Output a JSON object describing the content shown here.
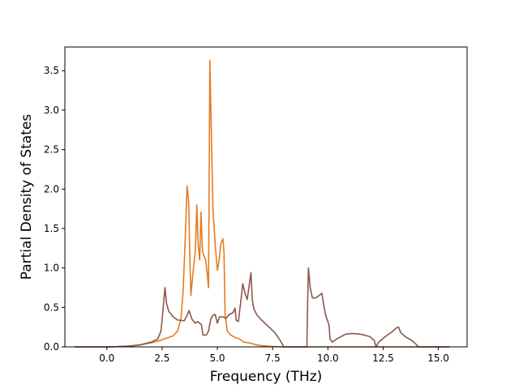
{
  "chart_data": {
    "type": "line",
    "title": "",
    "xlabel": "Frequency (THz)",
    "ylabel": "Partial Density of States",
    "xlim": [
      -1.9,
      16.3
    ],
    "ylim": [
      0.0,
      3.8
    ],
    "xticks": [
      0.0,
      2.5,
      5.0,
      7.5,
      10.0,
      12.5,
      15.0
    ],
    "xtick_labels": [
      "0.0",
      "2.5",
      "5.0",
      "7.5",
      "10.0",
      "12.5",
      "15.0"
    ],
    "yticks": [
      0.0,
      0.5,
      1.0,
      1.5,
      2.0,
      2.5,
      3.0,
      3.5
    ],
    "ytick_labels": [
      "0.0",
      "0.5",
      "1.0",
      "1.5",
      "2.0",
      "2.5",
      "3.0",
      "3.5"
    ],
    "grid": false,
    "legend": "none",
    "series": [
      {
        "color": "#e57b22",
        "points": [
          [
            -1.45,
            0.0
          ],
          [
            0.0,
            0.0
          ],
          [
            0.5,
            0.003
          ],
          [
            1.0,
            0.01
          ],
          [
            1.5,
            0.025
          ],
          [
            2.0,
            0.05
          ],
          [
            2.4,
            0.08
          ],
          [
            2.6,
            0.1
          ],
          [
            2.8,
            0.12
          ],
          [
            3.0,
            0.14
          ],
          [
            3.2,
            0.2
          ],
          [
            3.35,
            0.35
          ],
          [
            3.45,
            0.7
          ],
          [
            3.55,
            1.4
          ],
          [
            3.63,
            2.04
          ],
          [
            3.7,
            1.85
          ],
          [
            3.75,
            1.2
          ],
          [
            3.8,
            0.65
          ],
          [
            3.9,
            0.95
          ],
          [
            4.0,
            1.2
          ],
          [
            4.07,
            1.8
          ],
          [
            4.13,
            1.3
          ],
          [
            4.2,
            1.1
          ],
          [
            4.26,
            1.71
          ],
          [
            4.33,
            1.2
          ],
          [
            4.4,
            1.15
          ],
          [
            4.47,
            1.1
          ],
          [
            4.55,
            0.9
          ],
          [
            4.6,
            0.75
          ],
          [
            4.66,
            3.63
          ],
          [
            4.72,
            2.8
          ],
          [
            4.8,
            1.75
          ],
          [
            4.9,
            1.3
          ],
          [
            5.0,
            0.97
          ],
          [
            5.08,
            1.1
          ],
          [
            5.15,
            1.3
          ],
          [
            5.25,
            1.37
          ],
          [
            5.3,
            1.2
          ],
          [
            5.35,
            0.4
          ],
          [
            5.45,
            0.2
          ],
          [
            5.6,
            0.15
          ],
          [
            5.8,
            0.12
          ],
          [
            6.0,
            0.1
          ],
          [
            6.2,
            0.06
          ],
          [
            6.45,
            0.05
          ],
          [
            6.7,
            0.03
          ],
          [
            7.0,
            0.015
          ],
          [
            7.5,
            0.005
          ],
          [
            8.0,
            0.0
          ],
          [
            15.5,
            0.0
          ]
        ]
      },
      {
        "color": "#8c564b",
        "points": [
          [
            -1.45,
            0.0
          ],
          [
            0.0,
            0.0
          ],
          [
            0.5,
            0.003
          ],
          [
            1.0,
            0.01
          ],
          [
            1.5,
            0.025
          ],
          [
            2.0,
            0.06
          ],
          [
            2.3,
            0.1
          ],
          [
            2.45,
            0.2
          ],
          [
            2.55,
            0.5
          ],
          [
            2.63,
            0.75
          ],
          [
            2.7,
            0.55
          ],
          [
            2.8,
            0.45
          ],
          [
            3.0,
            0.38
          ],
          [
            3.2,
            0.34
          ],
          [
            3.5,
            0.33
          ],
          [
            3.6,
            0.38
          ],
          [
            3.72,
            0.46
          ],
          [
            3.85,
            0.35
          ],
          [
            4.0,
            0.3
          ],
          [
            4.1,
            0.32
          ],
          [
            4.2,
            0.3
          ],
          [
            4.28,
            0.28
          ],
          [
            4.35,
            0.15
          ],
          [
            4.5,
            0.15
          ],
          [
            4.6,
            0.2
          ],
          [
            4.7,
            0.35
          ],
          [
            4.8,
            0.4
          ],
          [
            4.9,
            0.41
          ],
          [
            5.0,
            0.3
          ],
          [
            5.1,
            0.38
          ],
          [
            5.25,
            0.38
          ],
          [
            5.4,
            0.36
          ],
          [
            5.5,
            0.4
          ],
          [
            5.6,
            0.42
          ],
          [
            5.7,
            0.43
          ],
          [
            5.8,
            0.49
          ],
          [
            5.85,
            0.34
          ],
          [
            5.95,
            0.32
          ],
          [
            6.05,
            0.55
          ],
          [
            6.15,
            0.8
          ],
          [
            6.25,
            0.68
          ],
          [
            6.35,
            0.6
          ],
          [
            6.45,
            0.8
          ],
          [
            6.52,
            0.94
          ],
          [
            6.58,
            0.6
          ],
          [
            6.65,
            0.48
          ],
          [
            6.8,
            0.4
          ],
          [
            7.0,
            0.34
          ],
          [
            7.3,
            0.26
          ],
          [
            7.6,
            0.18
          ],
          [
            7.8,
            0.1
          ],
          [
            7.95,
            0.03
          ],
          [
            8.0,
            0.0
          ],
          [
            9.05,
            0.0
          ],
          [
            9.08,
            0.5
          ],
          [
            9.12,
            1.0
          ],
          [
            9.2,
            0.75
          ],
          [
            9.3,
            0.62
          ],
          [
            9.45,
            0.62
          ],
          [
            9.6,
            0.65
          ],
          [
            9.73,
            0.68
          ],
          [
            9.8,
            0.55
          ],
          [
            9.9,
            0.4
          ],
          [
            10.05,
            0.28
          ],
          [
            10.1,
            0.1
          ],
          [
            10.2,
            0.06
          ],
          [
            10.4,
            0.1
          ],
          [
            10.6,
            0.13
          ],
          [
            10.8,
            0.16
          ],
          [
            11.1,
            0.17
          ],
          [
            11.5,
            0.16
          ],
          [
            11.9,
            0.13
          ],
          [
            12.1,
            0.08
          ],
          [
            12.18,
            0.0
          ],
          [
            12.3,
            0.06
          ],
          [
            12.6,
            0.13
          ],
          [
            12.9,
            0.19
          ],
          [
            13.1,
            0.24
          ],
          [
            13.2,
            0.25
          ],
          [
            13.3,
            0.18
          ],
          [
            13.5,
            0.13
          ],
          [
            13.8,
            0.08
          ],
          [
            14.0,
            0.03
          ],
          [
            14.1,
            0.0
          ],
          [
            15.5,
            0.0
          ]
        ]
      }
    ]
  }
}
